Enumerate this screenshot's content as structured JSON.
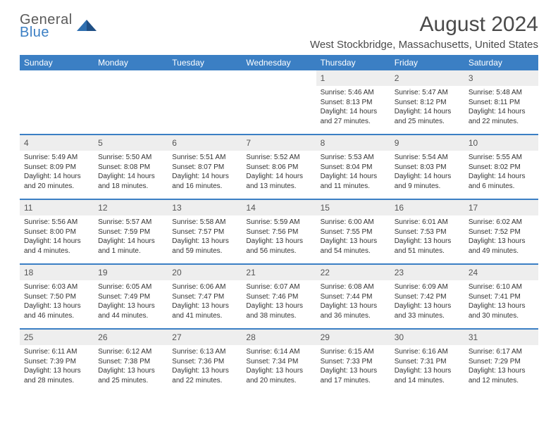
{
  "logo": {
    "line1": "General",
    "line2": "Blue",
    "icon_color": "#2f6fb0",
    "text_color_top": "#5a5a5a",
    "text_color_bottom": "#3b7fc4"
  },
  "title": "August 2024",
  "location": "West Stockbridge, Massachusetts, United States",
  "colors": {
    "header_bg": "#3b7fc4",
    "header_text": "#ffffff",
    "daynum_bg": "#eeeeee",
    "daynum_text": "#555555",
    "body_text": "#333333",
    "divider": "#3b7fc4",
    "page_bg": "#ffffff"
  },
  "fonts": {
    "title_size_pt": 22,
    "location_size_pt": 11,
    "weekday_size_pt": 9,
    "daynum_size_pt": 9,
    "body_size_pt": 7.5
  },
  "weekdays": [
    "Sunday",
    "Monday",
    "Tuesday",
    "Wednesday",
    "Thursday",
    "Friday",
    "Saturday"
  ],
  "weeks": [
    [
      null,
      null,
      null,
      null,
      {
        "n": "1",
        "sunrise": "Sunrise: 5:46 AM",
        "sunset": "Sunset: 8:13 PM",
        "d1": "Daylight: 14 hours",
        "d2": "and 27 minutes."
      },
      {
        "n": "2",
        "sunrise": "Sunrise: 5:47 AM",
        "sunset": "Sunset: 8:12 PM",
        "d1": "Daylight: 14 hours",
        "d2": "and 25 minutes."
      },
      {
        "n": "3",
        "sunrise": "Sunrise: 5:48 AM",
        "sunset": "Sunset: 8:11 PM",
        "d1": "Daylight: 14 hours",
        "d2": "and 22 minutes."
      }
    ],
    [
      {
        "n": "4",
        "sunrise": "Sunrise: 5:49 AM",
        "sunset": "Sunset: 8:09 PM",
        "d1": "Daylight: 14 hours",
        "d2": "and 20 minutes."
      },
      {
        "n": "5",
        "sunrise": "Sunrise: 5:50 AM",
        "sunset": "Sunset: 8:08 PM",
        "d1": "Daylight: 14 hours",
        "d2": "and 18 minutes."
      },
      {
        "n": "6",
        "sunrise": "Sunrise: 5:51 AM",
        "sunset": "Sunset: 8:07 PM",
        "d1": "Daylight: 14 hours",
        "d2": "and 16 minutes."
      },
      {
        "n": "7",
        "sunrise": "Sunrise: 5:52 AM",
        "sunset": "Sunset: 8:06 PM",
        "d1": "Daylight: 14 hours",
        "d2": "and 13 minutes."
      },
      {
        "n": "8",
        "sunrise": "Sunrise: 5:53 AM",
        "sunset": "Sunset: 8:04 PM",
        "d1": "Daylight: 14 hours",
        "d2": "and 11 minutes."
      },
      {
        "n": "9",
        "sunrise": "Sunrise: 5:54 AM",
        "sunset": "Sunset: 8:03 PM",
        "d1": "Daylight: 14 hours",
        "d2": "and 9 minutes."
      },
      {
        "n": "10",
        "sunrise": "Sunrise: 5:55 AM",
        "sunset": "Sunset: 8:02 PM",
        "d1": "Daylight: 14 hours",
        "d2": "and 6 minutes."
      }
    ],
    [
      {
        "n": "11",
        "sunrise": "Sunrise: 5:56 AM",
        "sunset": "Sunset: 8:00 PM",
        "d1": "Daylight: 14 hours",
        "d2": "and 4 minutes."
      },
      {
        "n": "12",
        "sunrise": "Sunrise: 5:57 AM",
        "sunset": "Sunset: 7:59 PM",
        "d1": "Daylight: 14 hours",
        "d2": "and 1 minute."
      },
      {
        "n": "13",
        "sunrise": "Sunrise: 5:58 AM",
        "sunset": "Sunset: 7:57 PM",
        "d1": "Daylight: 13 hours",
        "d2": "and 59 minutes."
      },
      {
        "n": "14",
        "sunrise": "Sunrise: 5:59 AM",
        "sunset": "Sunset: 7:56 PM",
        "d1": "Daylight: 13 hours",
        "d2": "and 56 minutes."
      },
      {
        "n": "15",
        "sunrise": "Sunrise: 6:00 AM",
        "sunset": "Sunset: 7:55 PM",
        "d1": "Daylight: 13 hours",
        "d2": "and 54 minutes."
      },
      {
        "n": "16",
        "sunrise": "Sunrise: 6:01 AM",
        "sunset": "Sunset: 7:53 PM",
        "d1": "Daylight: 13 hours",
        "d2": "and 51 minutes."
      },
      {
        "n": "17",
        "sunrise": "Sunrise: 6:02 AM",
        "sunset": "Sunset: 7:52 PM",
        "d1": "Daylight: 13 hours",
        "d2": "and 49 minutes."
      }
    ],
    [
      {
        "n": "18",
        "sunrise": "Sunrise: 6:03 AM",
        "sunset": "Sunset: 7:50 PM",
        "d1": "Daylight: 13 hours",
        "d2": "and 46 minutes."
      },
      {
        "n": "19",
        "sunrise": "Sunrise: 6:05 AM",
        "sunset": "Sunset: 7:49 PM",
        "d1": "Daylight: 13 hours",
        "d2": "and 44 minutes."
      },
      {
        "n": "20",
        "sunrise": "Sunrise: 6:06 AM",
        "sunset": "Sunset: 7:47 PM",
        "d1": "Daylight: 13 hours",
        "d2": "and 41 minutes."
      },
      {
        "n": "21",
        "sunrise": "Sunrise: 6:07 AM",
        "sunset": "Sunset: 7:46 PM",
        "d1": "Daylight: 13 hours",
        "d2": "and 38 minutes."
      },
      {
        "n": "22",
        "sunrise": "Sunrise: 6:08 AM",
        "sunset": "Sunset: 7:44 PM",
        "d1": "Daylight: 13 hours",
        "d2": "and 36 minutes."
      },
      {
        "n": "23",
        "sunrise": "Sunrise: 6:09 AM",
        "sunset": "Sunset: 7:42 PM",
        "d1": "Daylight: 13 hours",
        "d2": "and 33 minutes."
      },
      {
        "n": "24",
        "sunrise": "Sunrise: 6:10 AM",
        "sunset": "Sunset: 7:41 PM",
        "d1": "Daylight: 13 hours",
        "d2": "and 30 minutes."
      }
    ],
    [
      {
        "n": "25",
        "sunrise": "Sunrise: 6:11 AM",
        "sunset": "Sunset: 7:39 PM",
        "d1": "Daylight: 13 hours",
        "d2": "and 28 minutes."
      },
      {
        "n": "26",
        "sunrise": "Sunrise: 6:12 AM",
        "sunset": "Sunset: 7:38 PM",
        "d1": "Daylight: 13 hours",
        "d2": "and 25 minutes."
      },
      {
        "n": "27",
        "sunrise": "Sunrise: 6:13 AM",
        "sunset": "Sunset: 7:36 PM",
        "d1": "Daylight: 13 hours",
        "d2": "and 22 minutes."
      },
      {
        "n": "28",
        "sunrise": "Sunrise: 6:14 AM",
        "sunset": "Sunset: 7:34 PM",
        "d1": "Daylight: 13 hours",
        "d2": "and 20 minutes."
      },
      {
        "n": "29",
        "sunrise": "Sunrise: 6:15 AM",
        "sunset": "Sunset: 7:33 PM",
        "d1": "Daylight: 13 hours",
        "d2": "and 17 minutes."
      },
      {
        "n": "30",
        "sunrise": "Sunrise: 6:16 AM",
        "sunset": "Sunset: 7:31 PM",
        "d1": "Daylight: 13 hours",
        "d2": "and 14 minutes."
      },
      {
        "n": "31",
        "sunrise": "Sunrise: 6:17 AM",
        "sunset": "Sunset: 7:29 PM",
        "d1": "Daylight: 13 hours",
        "d2": "and 12 minutes."
      }
    ]
  ]
}
